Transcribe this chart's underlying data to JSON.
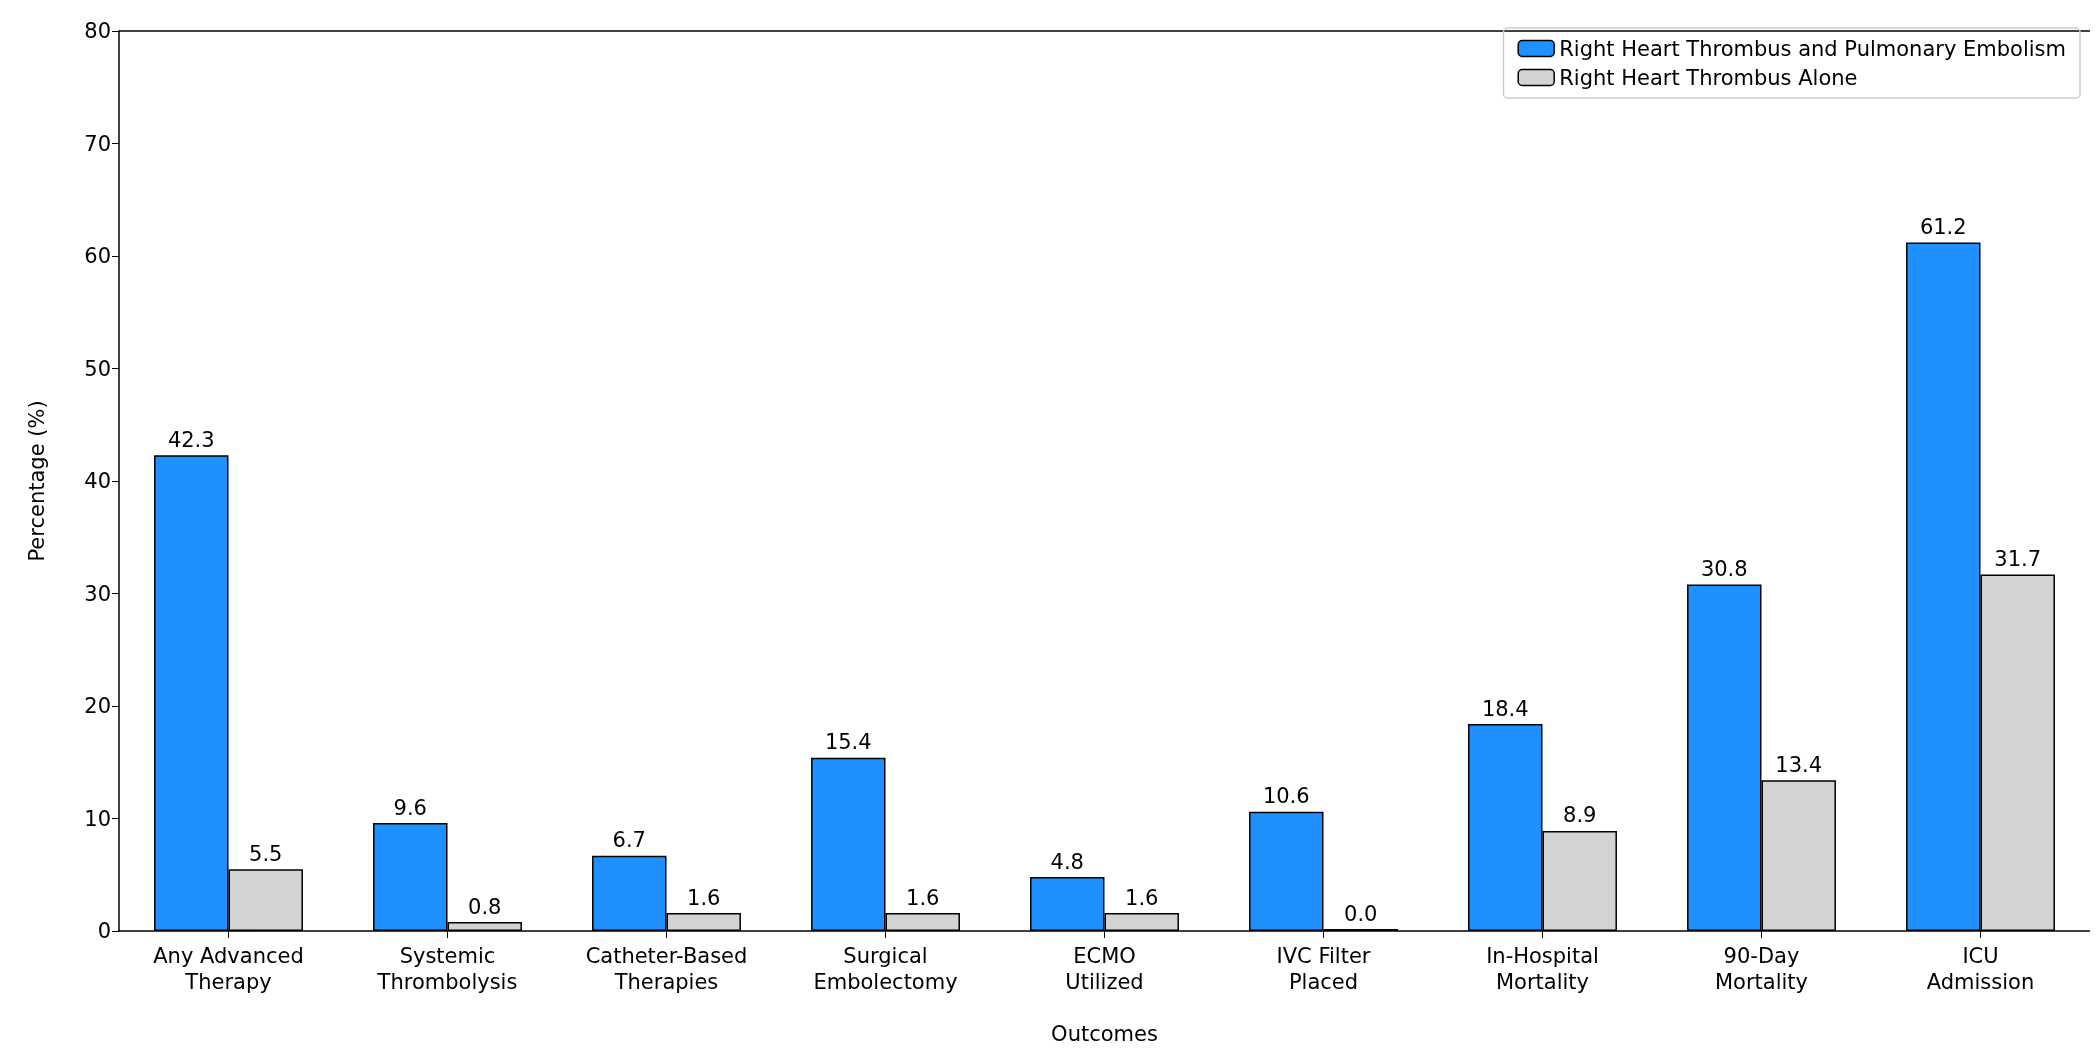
{
  "chart_data": {
    "type": "bar",
    "xlabel": "Outcomes",
    "ylabel": "Percentage (%)",
    "categories": [
      "Any Advanced Therapy",
      "Systemic Thrombolysis",
      "Catheter-Based Therapies",
      "Surgical Embolectomy",
      "ECMO Utilized",
      "IVC Filter Placed",
      "In-Hospital Mortality",
      "90-Day Mortality",
      "ICU Admission"
    ],
    "series": [
      {
        "name": "Right Heart Thrombus and Pulmonary Embolism",
        "color": "#1e90ff",
        "values": [
          42.3,
          9.6,
          6.7,
          15.4,
          4.8,
          10.6,
          18.4,
          30.8,
          61.2
        ],
        "value_labels": [
          "42.3",
          "9.6",
          "6.7",
          "15.4",
          "4.8",
          "10.6",
          "18.4",
          "30.8",
          "61.2"
        ]
      },
      {
        "name": "Right Heart Thrombus Alone",
        "color": "#d3d3d3",
        "values": [
          5.5,
          0.8,
          1.6,
          1.6,
          1.6,
          0,
          8.9,
          13.4,
          31.7
        ],
        "value_labels": [
          "5.5",
          "0.8",
          "1.6",
          "1.6",
          "1.6",
          "0.0",
          "8.9",
          "13.4",
          "31.7"
        ]
      }
    ],
    "ylim": [
      0,
      80
    ],
    "yticks": [
      0,
      10,
      20,
      30,
      40,
      50,
      60,
      70,
      80
    ],
    "grid": false,
    "legend": "top right"
  }
}
